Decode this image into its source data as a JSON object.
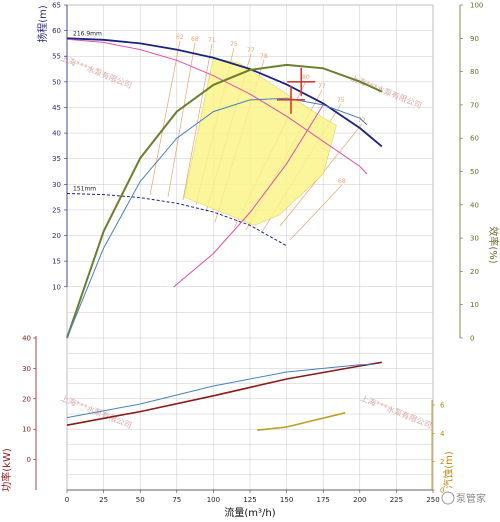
{
  "colors": {
    "head_axis": "#2a2a7a",
    "eff_axis": "#6b6b2a",
    "power_axis": "#8b1a1a",
    "npsh_axis": "#b8860b",
    "grid": "#c8c8c8",
    "head_big": "#1a237e",
    "pink": "#e04fb0",
    "green": "#6b7f2f",
    "blue": "#4a7fc0",
    "power": "#8b1a1a",
    "npsh": "#b8a020",
    "iso": "#f0a070",
    "band": "#fbf48a",
    "marker": "#d83a3a"
  },
  "watermark": "上海***水泵有限公司",
  "logo_text": "泵管家",
  "chart_data": [
    {
      "id": "head_efficiency",
      "type": "line",
      "xlabel": "流量(m³/h)",
      "xlim": [
        0,
        250
      ],
      "xticks": [
        0,
        25,
        50,
        75,
        100,
        125,
        150,
        175,
        200,
        225,
        250
      ],
      "ylabel": "扬程(m)",
      "ylim": [
        0,
        65
      ],
      "yticks": [
        10,
        15,
        20,
        25,
        30,
        35,
        40,
        45,
        50,
        55,
        60,
        65
      ],
      "y2label": "效率(%)",
      "y2lim": [
        0,
        100
      ],
      "y2ticks": [
        0,
        10,
        20,
        30,
        40,
        50,
        60,
        70,
        80,
        90,
        100
      ],
      "grid": true,
      "series": [
        {
          "name": "216.9mm",
          "role": "head",
          "dash": false,
          "color": "#1a237e",
          "x": [
            0,
            25,
            50,
            75,
            100,
            125,
            150,
            175,
            200,
            215
          ],
          "y": [
            58.5,
            58.2,
            57.5,
            56.3,
            54.7,
            52.5,
            49.5,
            45.8,
            41.0,
            37.4
          ]
        },
        {
          "role": "head",
          "dash": false,
          "color": "#e04fb0",
          "x": [
            0,
            25,
            50,
            75,
            100,
            125,
            150,
            175,
            200,
            205
          ],
          "y": [
            58.3,
            57.7,
            56.3,
            54.2,
            51.2,
            47.6,
            43.3,
            38.4,
            33.5,
            32.0
          ]
        },
        {
          "name": "151mm",
          "role": "head",
          "dash": true,
          "color": "#1a237e",
          "x": [
            0,
            25,
            50,
            75,
            100,
            125,
            150
          ],
          "y": [
            28.2,
            28.0,
            27.4,
            26.3,
            24.6,
            22.0,
            18.0
          ]
        },
        {
          "role": "efficiency",
          "dash": false,
          "color": "#6b7f2f",
          "x": [
            0,
            25,
            50,
            75,
            100,
            125,
            150,
            175,
            200,
            215
          ],
          "y": [
            0,
            32,
            54,
            68,
            76,
            80.5,
            82,
            81,
            77,
            74
          ]
        },
        {
          "role": "efficiency",
          "dash": false,
          "color": "#4a7fc0",
          "x": [
            0,
            25,
            50,
            75,
            100,
            125,
            150,
            175,
            200,
            205
          ],
          "y": [
            0,
            27,
            47,
            60,
            68,
            71.5,
            72,
            70,
            66,
            64
          ]
        },
        {
          "role": "system",
          "dash": false,
          "color": "#e04fb0",
          "x": [
            73,
            100,
            125,
            150,
            175
          ],
          "y": [
            10,
            16.5,
            24.5,
            34,
            45.5
          ]
        }
      ],
      "iso_labels": [
        "62",
        "68",
        "71",
        "75",
        "77",
        "78",
        "80",
        "77",
        "75",
        "72",
        "68"
      ],
      "markers": [
        {
          "x": 160,
          "y": 50
        },
        {
          "x": 153,
          "y": 46.5
        }
      ]
    },
    {
      "id": "power_npsh",
      "type": "line",
      "xlabel": "流量(m³/h)",
      "xlim": [
        0,
        250
      ],
      "ylabel": "功率(kW)",
      "ylim": [
        -10,
        40
      ],
      "yticks": [
        0,
        10,
        20,
        30,
        40
      ],
      "y2label": "汽蚀(m)",
      "y2lim": [
        0,
        6
      ],
      "y2ticks": [
        0,
        2,
        4,
        6
      ],
      "grid": true,
      "series": [
        {
          "role": "power",
          "color": "#8b1a1a",
          "x": [
            0,
            50,
            100,
            150,
            200,
            215
          ],
          "y": [
            11.3,
            15.8,
            21.0,
            26.5,
            30.8,
            32.0
          ]
        },
        {
          "role": "power",
          "color": "#4a7fc0",
          "x": [
            0,
            50,
            100,
            150,
            200,
            210
          ],
          "y": [
            13.8,
            18.3,
            24.2,
            28.8,
            31.2,
            31.4
          ]
        },
        {
          "role": "npsh",
          "color": "#b8a020",
          "x": [
            130,
            150,
            170,
            190
          ],
          "y": [
            4.22,
            4.45,
            4.95,
            5.45
          ]
        }
      ]
    }
  ]
}
